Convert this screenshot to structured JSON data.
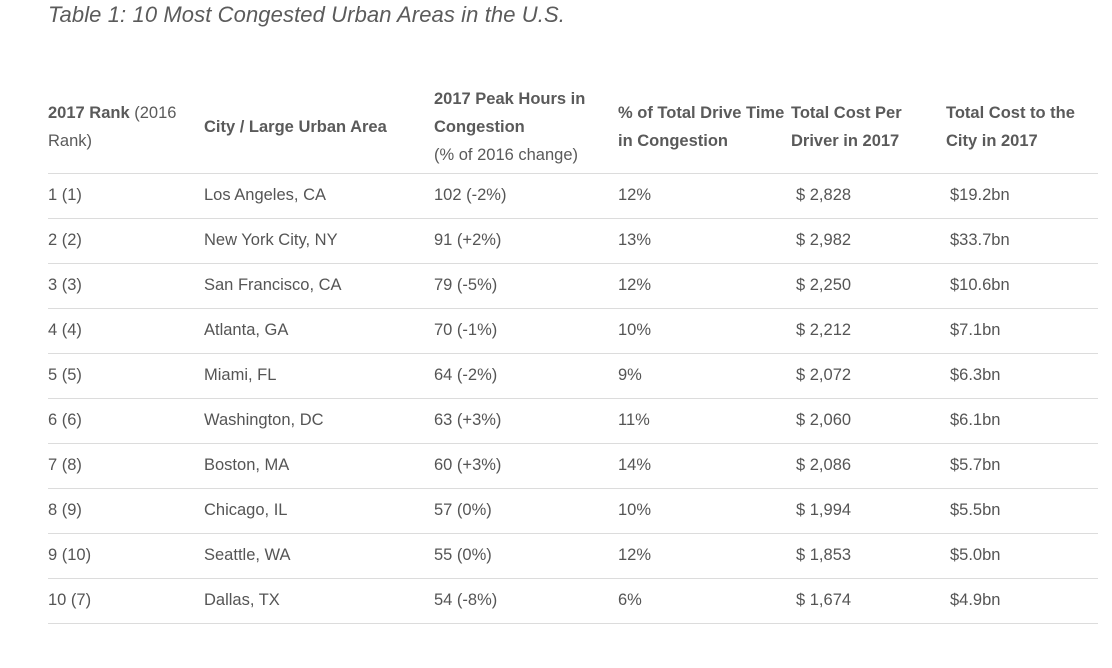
{
  "title": "Table 1: 10 Most Congested Urban Areas in the U.S.",
  "headers": {
    "rank_bold": "2017 Rank",
    "rank_normal": " (2016 Rank)",
    "city": "City / Large Urban Area",
    "peak_bold": "2017 Peak Hours in Congestion",
    "peak_sub": "(% of 2016 change)",
    "drive_time": "% of Total Drive Time in Congestion",
    "cost_driver": "Total Cost Per Driver in 2017",
    "cost_city": "Total Cost to the City in 2017"
  },
  "rows": [
    {
      "rank": "1 (1)",
      "city": "Los Angeles, CA",
      "peak": "102 (-2%)",
      "drive": "12%",
      "cost_driver": "$ 2,828",
      "cost_city": "$19.2bn"
    },
    {
      "rank": "2 (2)",
      "city": "New York City, NY",
      "peak": "91 (+2%)",
      "drive": "13%",
      "cost_driver": "$ 2,982",
      "cost_city": "$33.7bn"
    },
    {
      "rank": "3 (3)",
      "city": "San Francisco, CA",
      "peak": "79 (-5%)",
      "drive": "12%",
      "cost_driver": "$ 2,250",
      "cost_city": "$10.6bn"
    },
    {
      "rank": "4 (4)",
      "city": "Atlanta, GA",
      "peak": "70 (-1%)",
      "drive": "10%",
      "cost_driver": "$ 2,212",
      "cost_city": "$7.1bn"
    },
    {
      "rank": "5 (5)",
      "city": "Miami, FL",
      "peak": "64 (-2%)",
      "drive": "9%",
      "cost_driver": "$ 2,072",
      "cost_city": "$6.3bn"
    },
    {
      "rank": "6 (6)",
      "city": "Washington, DC",
      "peak": "63 (+3%)",
      "drive": "11%",
      "cost_driver": "$ 2,060",
      "cost_city": "$6.1bn"
    },
    {
      "rank": "7 (8)",
      "city": "Boston, MA",
      "peak": "60 (+3%)",
      "drive": "14%",
      "cost_driver": "$ 2,086",
      "cost_city": "$5.7bn"
    },
    {
      "rank": "8 (9)",
      "city": "Chicago, IL",
      "peak": "57 (0%)",
      "drive": "10%",
      "cost_driver": "$ 1,994",
      "cost_city": "$5.5bn"
    },
    {
      "rank": "9 (10)",
      "city": "Seattle, WA",
      "peak": "55 (0%)",
      "drive": "12%",
      "cost_driver": "$ 1,853",
      "cost_city": "$5.0bn"
    },
    {
      "rank": "10 (7)",
      "city": "Dallas, TX",
      "peak": "54 (-8%)",
      "drive": "6%",
      "cost_driver": "$ 1,674",
      "cost_city": "$4.9bn"
    }
  ]
}
